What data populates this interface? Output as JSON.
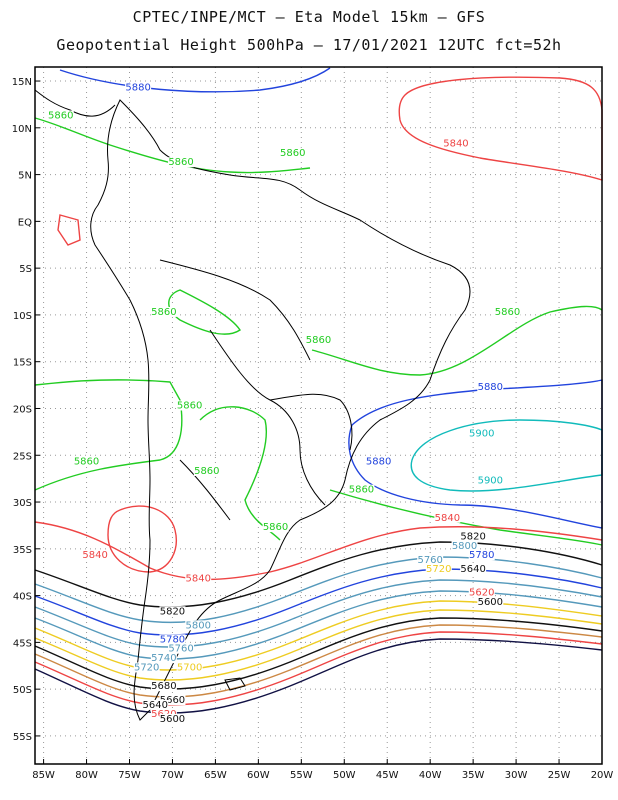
{
  "header": {
    "line1": "CPTEC/INPE/MCT –  Eta Model 15km – GFS",
    "line2": "Geopotential Height 500hPa – 17/01/2021 12UTC fct=52h"
  },
  "axes": {
    "lat_labels": [
      "15N",
      "10N",
      "5N",
      "EQ",
      "5S",
      "10S",
      "15S",
      "20S",
      "25S",
      "30S",
      "35S",
      "40S",
      "45S",
      "50S",
      "55S"
    ],
    "lat_values": [
      15,
      10,
      5,
      0,
      -5,
      -10,
      -15,
      -20,
      -25,
      -30,
      -35,
      -40,
      -45,
      -50,
      -55
    ],
    "lon_labels": [
      "85W",
      "80W",
      "75W",
      "70W",
      "65W",
      "60W",
      "55W",
      "50W",
      "45W",
      "40W",
      "35W",
      "30W",
      "25W",
      "20W"
    ],
    "lon_values": [
      -85,
      -80,
      -75,
      -70,
      -65,
      -60,
      -55,
      -50,
      -45,
      -40,
      -35,
      -30,
      -25,
      -20
    ],
    "lat_range": [
      -58,
      16.5
    ],
    "lon_range": [
      -86,
      -20
    ],
    "grid": "dotted"
  },
  "contour_labels": [
    {
      "text": "5880",
      "lon": -74,
      "lat": 14,
      "color": "#2244dd"
    },
    {
      "text": "5860",
      "lon": -83,
      "lat": 11,
      "color": "#22cc22"
    },
    {
      "text": "5860",
      "lon": -69,
      "lat": 6,
      "color": "#22cc22"
    },
    {
      "text": "5860",
      "lon": -56,
      "lat": 7,
      "color": "#22cc22"
    },
    {
      "text": "5840",
      "lon": -37,
      "lat": 8,
      "color": "#ee4444"
    },
    {
      "text": "5860",
      "lon": -71,
      "lat": -10,
      "color": "#22cc22"
    },
    {
      "text": "5860",
      "lon": -31,
      "lat": -10,
      "color": "#22cc22"
    },
    {
      "text": "5860",
      "lon": -53,
      "lat": -13,
      "color": "#22cc22"
    },
    {
      "text": "5880",
      "lon": -33,
      "lat": -18,
      "color": "#2244dd"
    },
    {
      "text": "5860",
      "lon": -68,
      "lat": -20,
      "color": "#22cc22"
    },
    {
      "text": "5900",
      "lon": -34,
      "lat": -23,
      "color": "#11bbbb"
    },
    {
      "text": "5860",
      "lon": -80,
      "lat": -26,
      "color": "#22cc22"
    },
    {
      "text": "5880",
      "lon": -46,
      "lat": -26,
      "color": "#2244dd"
    },
    {
      "text": "5860",
      "lon": -66,
      "lat": -27,
      "color": "#22cc22"
    },
    {
      "text": "5900",
      "lon": -33,
      "lat": -28,
      "color": "#11bbbb"
    },
    {
      "text": "5860",
      "lon": -48,
      "lat": -29,
      "color": "#22cc22"
    },
    {
      "text": "5860",
      "lon": -58,
      "lat": -33,
      "color": "#22cc22"
    },
    {
      "text": "5840",
      "lon": -38,
      "lat": -32,
      "color": "#ee4444"
    },
    {
      "text": "5820",
      "lon": -35,
      "lat": -34,
      "color": "#111111"
    },
    {
      "text": "5800",
      "lon": -36,
      "lat": -35,
      "color": "#5599bb"
    },
    {
      "text": "5780",
      "lon": -34,
      "lat": -36,
      "color": "#2244dd"
    },
    {
      "text": "5760",
      "lon": -40,
      "lat": -36.5,
      "color": "#5599bb"
    },
    {
      "text": "5720",
      "lon": -39,
      "lat": -37.5,
      "color": "#eecc22"
    },
    {
      "text": "5840",
      "lon": -79,
      "lat": -36,
      "color": "#ee4444"
    },
    {
      "text": "5840",
      "lon": -67,
      "lat": -38.5,
      "color": "#ee4444"
    },
    {
      "text": "5820",
      "lon": -70,
      "lat": -42,
      "color": "#111111"
    },
    {
      "text": "5800",
      "lon": -67,
      "lat": -43.5,
      "color": "#5599bb"
    },
    {
      "text": "5780",
      "lon": -70,
      "lat": -45,
      "color": "#2244dd"
    },
    {
      "text": "5760",
      "lon": -69,
      "lat": -46,
      "color": "#5599bb"
    },
    {
      "text": "5740",
      "lon": -71,
      "lat": -47,
      "color": "#5599bb"
    },
    {
      "text": "5720",
      "lon": -73,
      "lat": -48,
      "color": "#5599bb"
    },
    {
      "text": "5700",
      "lon": -68,
      "lat": -48,
      "color": "#eecc22"
    },
    {
      "text": "5680",
      "lon": -71,
      "lat": -50,
      "color": "#111111"
    },
    {
      "text": "5660",
      "lon": -70,
      "lat": -51.5,
      "color": "#111111"
    },
    {
      "text": "5640",
      "lon": -72,
      "lat": -52,
      "color": "#111111"
    },
    {
      "text": "5620",
      "lon": -71,
      "lat": -53,
      "color": "#ee4444"
    },
    {
      "text": "5600",
      "lon": -70,
      "lat": -53.5,
      "color": "#111111"
    },
    {
      "text": "5640",
      "lon": -35,
      "lat": -37.5,
      "color": "#111111"
    },
    {
      "text": "5620",
      "lon": -34,
      "lat": -40,
      "color": "#ee4444"
    },
    {
      "text": "5600",
      "lon": -33,
      "lat": -41,
      "color": "#111111"
    }
  ],
  "colors": {
    "contour_5900": "#11bbbb",
    "contour_5880": "#2244dd",
    "contour_5860": "#22cc22",
    "contour_5840": "#ee4444",
    "contour_5820": "#111111",
    "contour_5800": "#5599bb",
    "contour_5720": "#eecc22",
    "coastline": "#000000",
    "grid": "#999999"
  }
}
